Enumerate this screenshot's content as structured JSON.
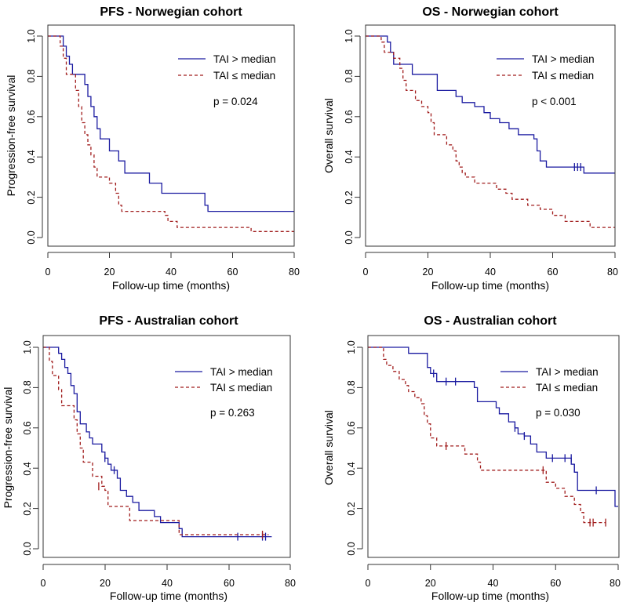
{
  "chart_data": [
    {
      "type": "line",
      "title": "PFS - Norwegian cohort",
      "xlabel": "Follow-up time (months)",
      "ylabel": "Progression-free survival",
      "xlim": [
        0,
        80
      ],
      "ylim": [
        0,
        1
      ],
      "xticks": [
        "0",
        "20",
        "40",
        "60",
        "80"
      ],
      "yticks": [
        "0.0",
        "0.2",
        "0.4",
        "0.6",
        "0.8",
        "1.0"
      ],
      "legend": [
        "TAI > median",
        "TAI ≤ median"
      ],
      "pvalue": "p = 0.024",
      "series": [
        {
          "name": "TAI > median",
          "color": "#1a1aa0",
          "dash": "",
          "steps": [
            [
              0,
              1.0
            ],
            [
              5,
              0.95
            ],
            [
              6,
              0.9
            ],
            [
              7,
              0.86
            ],
            [
              8,
              0.81
            ],
            [
              12,
              0.76
            ],
            [
              13,
              0.7
            ],
            [
              14,
              0.65
            ],
            [
              15,
              0.6
            ],
            [
              16,
              0.54
            ],
            [
              17,
              0.49
            ],
            [
              20,
              0.43
            ],
            [
              23,
              0.38
            ],
            [
              25,
              0.32
            ],
            [
              33,
              0.27
            ],
            [
              37,
              0.22
            ],
            [
              38,
              0.22
            ],
            [
              46,
              0.22
            ],
            [
              51,
              0.16
            ],
            [
              52,
              0.13
            ],
            [
              80,
              0.13
            ]
          ],
          "censors": []
        },
        {
          "name": "TAI ≤ median",
          "color": "#a01c1c",
          "dash": "4,3",
          "steps": [
            [
              0,
              1.0
            ],
            [
              4,
              0.95
            ],
            [
              5,
              0.89
            ],
            [
              6,
              0.81
            ],
            [
              9,
              0.73
            ],
            [
              10,
              0.65
            ],
            [
              11,
              0.57
            ],
            [
              12,
              0.51
            ],
            [
              13,
              0.46
            ],
            [
              14,
              0.41
            ],
            [
              15,
              0.35
            ],
            [
              16,
              0.3
            ],
            [
              20,
              0.27
            ],
            [
              22,
              0.22
            ],
            [
              23,
              0.16
            ],
            [
              24,
              0.13
            ],
            [
              38,
              0.11
            ],
            [
              39,
              0.08
            ],
            [
              42,
              0.05
            ],
            [
              66,
              0.03
            ],
            [
              80,
              0.03
            ]
          ],
          "censors": []
        }
      ]
    },
    {
      "type": "line",
      "title": "OS - Norwegian cohort",
      "xlabel": "Follow-up time (months)",
      "ylabel": "Overall survival",
      "xlim": [
        0,
        80
      ],
      "ylim": [
        0,
        1
      ],
      "xticks": [
        "0",
        "20",
        "40",
        "60",
        "80"
      ],
      "yticks": [
        "0.0",
        "0.2",
        "0.4",
        "0.6",
        "0.8",
        "1.0"
      ],
      "legend": [
        "TAI > median",
        "TAI ≤ median"
      ],
      "pvalue": "p < 0.001",
      "series": [
        {
          "name": "TAI > median",
          "color": "#1a1aa0",
          "dash": "",
          "steps": [
            [
              0,
              1.0
            ],
            [
              7,
              0.97
            ],
            [
              8,
              0.92
            ],
            [
              9,
              0.86
            ],
            [
              15,
              0.81
            ],
            [
              21,
              0.81
            ],
            [
              23,
              0.73
            ],
            [
              29,
              0.7
            ],
            [
              31,
              0.67
            ],
            [
              35,
              0.65
            ],
            [
              38,
              0.62
            ],
            [
              40,
              0.59
            ],
            [
              43,
              0.57
            ],
            [
              46,
              0.54
            ],
            [
              49,
              0.51
            ],
            [
              54,
              0.49
            ],
            [
              55,
              0.43
            ],
            [
              56,
              0.38
            ],
            [
              58,
              0.35
            ],
            [
              68,
              0.35
            ],
            [
              70,
              0.32
            ],
            [
              80,
              0.32
            ]
          ],
          "censors": [
            [
              67,
              0.35
            ],
            [
              68,
              0.35
            ],
            [
              69,
              0.35
            ]
          ]
        },
        {
          "name": "TAI ≤ median",
          "color": "#a01c1c",
          "dash": "4,3",
          "steps": [
            [
              0,
              1.0
            ],
            [
              5,
              0.97
            ],
            [
              6,
              0.92
            ],
            [
              9,
              0.89
            ],
            [
              11,
              0.84
            ],
            [
              12,
              0.78
            ],
            [
              13,
              0.73
            ],
            [
              16,
              0.68
            ],
            [
              18,
              0.65
            ],
            [
              20,
              0.62
            ],
            [
              21,
              0.57
            ],
            [
              22,
              0.51
            ],
            [
              26,
              0.46
            ],
            [
              28,
              0.43
            ],
            [
              29,
              0.38
            ],
            [
              30,
              0.35
            ],
            [
              31,
              0.32
            ],
            [
              32,
              0.3
            ],
            [
              35,
              0.27
            ],
            [
              42,
              0.24
            ],
            [
              45,
              0.22
            ],
            [
              47,
              0.19
            ],
            [
              52,
              0.16
            ],
            [
              56,
              0.14
            ],
            [
              60,
              0.11
            ],
            [
              64,
              0.08
            ],
            [
              72,
              0.05
            ],
            [
              80,
              0.05
            ]
          ],
          "censors": []
        }
      ]
    },
    {
      "type": "line",
      "title": "PFS - Australian cohort",
      "xlabel": "Follow-up time (months)",
      "ylabel": "Progression-free survival",
      "xlim": [
        0,
        80
      ],
      "ylim": [
        0,
        1
      ],
      "xticks": [
        "0",
        "20",
        "40",
        "60",
        "80"
      ],
      "yticks": [
        "0.0",
        "0.2",
        "0.4",
        "0.6",
        "0.8",
        "1.0"
      ],
      "legend": [
        "TAI > median",
        "TAI ≤ median"
      ],
      "pvalue": "p = 0.263",
      "series": [
        {
          "name": "TAI > median",
          "color": "#1a1aa0",
          "dash": "",
          "steps": [
            [
              0,
              1.0
            ],
            [
              5,
              0.97
            ],
            [
              6,
              0.94
            ],
            [
              7,
              0.9
            ],
            [
              8,
              0.87
            ],
            [
              9,
              0.81
            ],
            [
              10,
              0.77
            ],
            [
              11,
              0.68
            ],
            [
              12,
              0.62
            ],
            [
              14,
              0.58
            ],
            [
              15,
              0.55
            ],
            [
              16,
              0.52
            ],
            [
              19,
              0.48
            ],
            [
              20,
              0.45
            ],
            [
              21,
              0.42
            ],
            [
              22,
              0.39
            ],
            [
              24,
              0.35
            ],
            [
              25,
              0.29
            ],
            [
              27,
              0.26
            ],
            [
              29,
              0.23
            ],
            [
              31,
              0.19
            ],
            [
              36,
              0.16
            ],
            [
              38,
              0.13
            ],
            [
              44,
              0.1
            ],
            [
              45,
              0.06
            ],
            [
              74,
              0.06
            ]
          ],
          "censors": [
            [
              20,
              0.45
            ],
            [
              23,
              0.39
            ],
            [
              63,
              0.06
            ],
            [
              71,
              0.06
            ],
            [
              72,
              0.06
            ]
          ]
        },
        {
          "name": "TAI ≤ median",
          "color": "#a01c1c",
          "dash": "4,3",
          "steps": [
            [
              0,
              1.0
            ],
            [
              2,
              0.93
            ],
            [
              3,
              0.86
            ],
            [
              5,
              0.79
            ],
            [
              6,
              0.71
            ],
            [
              10,
              0.64
            ],
            [
              11,
              0.57
            ],
            [
              12,
              0.5
            ],
            [
              13,
              0.43
            ],
            [
              16,
              0.36
            ],
            [
              19,
              0.31
            ],
            [
              20,
              0.29
            ],
            [
              21,
              0.21
            ],
            [
              27,
              0.21
            ],
            [
              28,
              0.14
            ],
            [
              41,
              0.14
            ],
            [
              44,
              0.07
            ],
            [
              45,
              0.07
            ],
            [
              73,
              0.07
            ]
          ],
          "censors": [
            [
              18,
              0.31
            ],
            [
              71,
              0.07
            ]
          ]
        }
      ]
    },
    {
      "type": "line",
      "title": "OS - Australian cohort",
      "xlabel": "Follow-up time (months)",
      "ylabel": "Overall survival",
      "xlim": [
        0,
        80
      ],
      "ylim": [
        0,
        1
      ],
      "xticks": [
        "0",
        "20",
        "40",
        "60",
        "80"
      ],
      "yticks": [
        "0.0",
        "0.2",
        "0.4",
        "0.6",
        "0.8",
        "1.0"
      ],
      "legend": [
        "TAI > median",
        "TAI ≤ median"
      ],
      "pvalue": "p = 0.030",
      "series": [
        {
          "name": "TAI > median",
          "color": "#1a1aa0",
          "dash": "",
          "steps": [
            [
              0,
              1.0
            ],
            [
              13,
              0.97
            ],
            [
              19,
              0.9
            ],
            [
              20,
              0.87
            ],
            [
              22,
              0.83
            ],
            [
              34,
              0.8
            ],
            [
              35,
              0.73
            ],
            [
              41,
              0.7
            ],
            [
              42,
              0.67
            ],
            [
              45,
              0.63
            ],
            [
              47,
              0.6
            ],
            [
              48,
              0.57
            ],
            [
              50,
              0.56
            ],
            [
              52,
              0.52
            ],
            [
              54,
              0.48
            ],
            [
              57,
              0.45
            ],
            [
              65,
              0.42
            ],
            [
              66,
              0.38
            ],
            [
              67,
              0.29
            ],
            [
              78,
              0.29
            ],
            [
              79,
              0.21
            ],
            [
              80,
              0.21
            ]
          ],
          "censors": [
            [
              21,
              0.87
            ],
            [
              25,
              0.83
            ],
            [
              28,
              0.83
            ],
            [
              47,
              0.6
            ],
            [
              50,
              0.56
            ],
            [
              59,
              0.45
            ],
            [
              63,
              0.45
            ],
            [
              65,
              0.45
            ],
            [
              66,
              0.4
            ],
            [
              73,
              0.29
            ]
          ]
        },
        {
          "name": "TAI ≤ median",
          "color": "#a01c1c",
          "dash": "4,3",
          "steps": [
            [
              0,
              1.0
            ],
            [
              5,
              0.94
            ],
            [
              6,
              0.91
            ],
            [
              8,
              0.88
            ],
            [
              10,
              0.84
            ],
            [
              12,
              0.81
            ],
            [
              13,
              0.78
            ],
            [
              15,
              0.75
            ],
            [
              17,
              0.72
            ],
            [
              18,
              0.66
            ],
            [
              19,
              0.62
            ],
            [
              20,
              0.55
            ],
            [
              22,
              0.51
            ],
            [
              31,
              0.47
            ],
            [
              35,
              0.43
            ],
            [
              36,
              0.39
            ],
            [
              56,
              0.39
            ],
            [
              57,
              0.33
            ],
            [
              60,
              0.3
            ],
            [
              63,
              0.26
            ],
            [
              66,
              0.22
            ],
            [
              68,
              0.18
            ],
            [
              69,
              0.13
            ],
            [
              76,
              0.13
            ]
          ],
          "censors": [
            [
              25,
              0.51
            ],
            [
              56,
              0.39
            ],
            [
              71,
              0.13
            ],
            [
              72,
              0.13
            ],
            [
              76,
              0.13
            ]
          ]
        }
      ]
    }
  ]
}
